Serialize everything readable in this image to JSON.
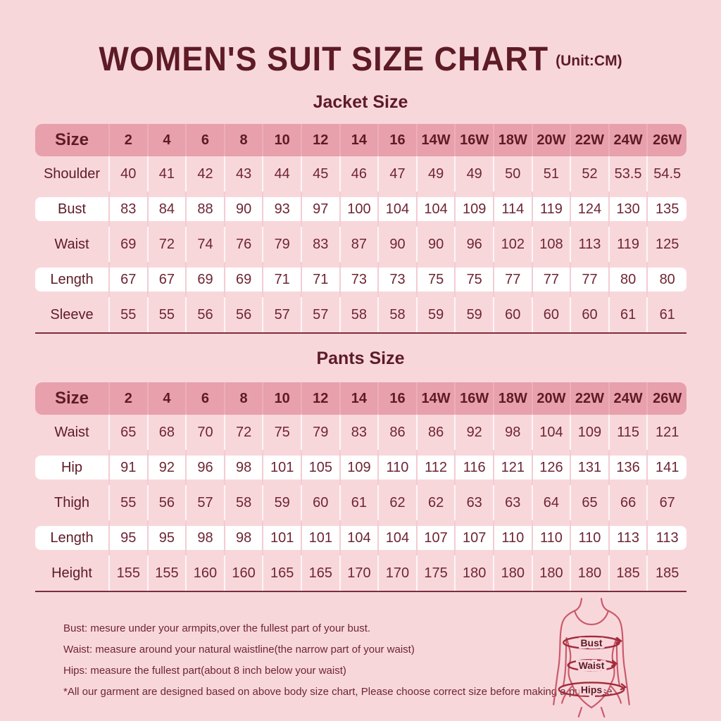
{
  "header": {
    "title": "WOMEN'S SUIT SIZE CHART",
    "unit": "(Unit:CM)"
  },
  "jacket": {
    "heading": "Jacket Size",
    "header": [
      "Size",
      "2",
      "4",
      "6",
      "8",
      "10",
      "12",
      "14",
      "16",
      "14W",
      "16W",
      "18W",
      "20W",
      "22W",
      "24W",
      "26W"
    ],
    "rows": [
      {
        "label": "Shoulder",
        "values": [
          "40",
          "41",
          "42",
          "43",
          "44",
          "45",
          "46",
          "47",
          "49",
          "49",
          "50",
          "51",
          "52",
          "53.5",
          "54.5"
        ]
      },
      {
        "label": "Bust",
        "values": [
          "83",
          "84",
          "88",
          "90",
          "93",
          "97",
          "100",
          "104",
          "104",
          "109",
          "114",
          "119",
          "124",
          "130",
          "135"
        ]
      },
      {
        "label": "Waist",
        "values": [
          "69",
          "72",
          "74",
          "76",
          "79",
          "83",
          "87",
          "90",
          "90",
          "96",
          "102",
          "108",
          "113",
          "119",
          "125"
        ]
      },
      {
        "label": "Length",
        "values": [
          "67",
          "67",
          "69",
          "69",
          "71",
          "71",
          "73",
          "73",
          "75",
          "75",
          "77",
          "77",
          "77",
          "80",
          "80"
        ]
      },
      {
        "label": "Sleeve",
        "values": [
          "55",
          "55",
          "56",
          "56",
          "57",
          "57",
          "58",
          "58",
          "59",
          "59",
          "60",
          "60",
          "60",
          "61",
          "61"
        ]
      }
    ]
  },
  "pants": {
    "heading": "Pants Size",
    "header": [
      "Size",
      "2",
      "4",
      "6",
      "8",
      "10",
      "12",
      "14",
      "16",
      "14W",
      "16W",
      "18W",
      "20W",
      "22W",
      "24W",
      "26W"
    ],
    "rows": [
      {
        "label": "Waist",
        "values": [
          "65",
          "68",
          "70",
          "72",
          "75",
          "79",
          "83",
          "86",
          "86",
          "92",
          "98",
          "104",
          "109",
          "115",
          "121"
        ]
      },
      {
        "label": "Hip",
        "values": [
          "91",
          "92",
          "96",
          "98",
          "101",
          "105",
          "109",
          "110",
          "112",
          "116",
          "121",
          "126",
          "131",
          "136",
          "141"
        ]
      },
      {
        "label": "Thigh",
        "values": [
          "55",
          "56",
          "57",
          "58",
          "59",
          "60",
          "61",
          "62",
          "62",
          "63",
          "63",
          "64",
          "65",
          "66",
          "67"
        ]
      },
      {
        "label": "Length",
        "values": [
          "95",
          "95",
          "98",
          "98",
          "101",
          "101",
          "104",
          "104",
          "107",
          "107",
          "110",
          "110",
          "110",
          "113",
          "113"
        ]
      },
      {
        "label": "Height",
        "values": [
          "155",
          "155",
          "160",
          "160",
          "165",
          "165",
          "170",
          "170",
          "175",
          "180",
          "180",
          "180",
          "180",
          "185",
          "185"
        ]
      }
    ]
  },
  "notes": [
    "Bust: mesure under your armpits,over the fullest part of your bust.",
    "Waist: measure around your natural waistline(the narrow part of your waist)",
    "Hips: measure the fullest part(about 8 inch below your waist)",
    "*All our garment are designed based on above body size chart, Please choose correct size before making a purchase."
  ],
  "figure": {
    "labels": [
      "Bust",
      "Waist",
      "Hips"
    ]
  },
  "colors": {
    "background": "#f8d7db",
    "header_row": "#e7a0ac",
    "white_row": "#ffffff",
    "title_text": "#5d1b26",
    "value_text": "#6e2533",
    "table_bottom_line": "#7d2e3c",
    "figure_outline": "#c9596a",
    "band_line": "#a12b3a"
  }
}
